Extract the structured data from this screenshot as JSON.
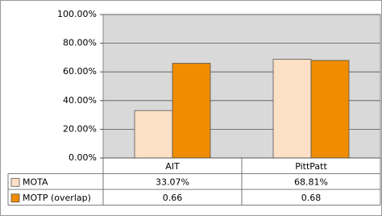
{
  "chart_data": {
    "type": "bar",
    "categories": [
      "AIT",
      "PittPatt"
    ],
    "series": [
      {
        "name": "MOTA",
        "color": "#fde0c6",
        "values": [
          33.07,
          68.81
        ],
        "value_labels": [
          "33.07%",
          "68.81%"
        ]
      },
      {
        "name": "MOTP (overlap)",
        "color": "#f08c00",
        "values": [
          66,
          68
        ],
        "value_labels": [
          "0.66",
          "0.68"
        ]
      }
    ],
    "ylim": [
      0,
      100
    ],
    "yticks": [
      {
        "value": 0,
        "label": "0.00%"
      },
      {
        "value": 20,
        "label": "20.00%"
      },
      {
        "value": 40,
        "label": "40.00%"
      },
      {
        "value": 60,
        "label": "60.00%"
      },
      {
        "value": 80,
        "label": "80.00%"
      },
      {
        "value": 100,
        "label": "100.00%"
      }
    ],
    "grid": true
  }
}
